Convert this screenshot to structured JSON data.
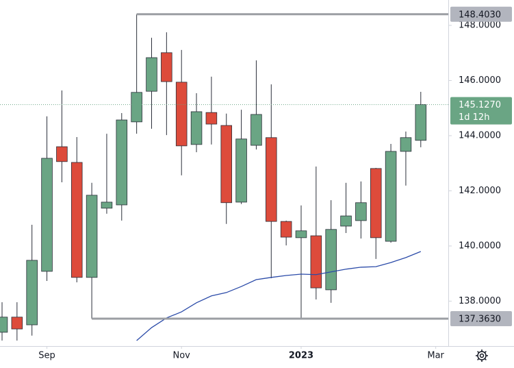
{
  "chart_data": {
    "type": "candlestick",
    "x": [
      0,
      1,
      2,
      3,
      4,
      5,
      6,
      7,
      8,
      9,
      10,
      11,
      12,
      13,
      14,
      15,
      16,
      17,
      18,
      19,
      20,
      21,
      22,
      23,
      24,
      25,
      26,
      27,
      28
    ],
    "open": [
      136.87,
      137.42,
      137.14,
      139.08,
      143.6,
      143.03,
      138.86,
      141.37,
      141.49,
      144.5,
      145.61,
      147.01,
      145.94,
      143.68,
      144.84,
      144.37,
      141.59,
      143.65,
      143.93,
      140.89,
      140.3,
      140.37,
      138.41,
      140.72,
      140.92,
      142.81,
      140.17,
      143.43,
      143.83
    ],
    "high": [
      137.96,
      137.96,
      140.77,
      144.7,
      145.64,
      143.95,
      142.29,
      144.07,
      144.82,
      148.403,
      147.55,
      147.75,
      147.11,
      145.54,
      146.14,
      144.8,
      144.94,
      146.73,
      145.86,
      140.92,
      141.47,
      142.88,
      141.66,
      142.29,
      142.34,
      142.83,
      143.7,
      144.15,
      145.59
    ],
    "low": [
      136.57,
      136.57,
      136.75,
      138.73,
      142.31,
      138.68,
      137.363,
      141.17,
      140.92,
      144.07,
      144.25,
      144.02,
      142.56,
      143.4,
      143.68,
      140.8,
      141.52,
      143.5,
      138.83,
      140.02,
      137.363,
      138.06,
      137.94,
      140.47,
      140.27,
      139.53,
      140.12,
      142.19,
      143.58
    ],
    "close": [
      137.42,
      136.99,
      139.48,
      143.18,
      143.06,
      138.86,
      141.84,
      141.59,
      144.57,
      145.57,
      146.83,
      145.96,
      143.63,
      144.87,
      144.42,
      141.57,
      143.88,
      144.77,
      140.89,
      140.32,
      140.55,
      138.48,
      140.6,
      141.09,
      141.57,
      140.3,
      143.43,
      143.93,
      145.127
    ],
    "up_color": "#6aa584",
    "down_color": "#dd4b3b",
    "wick_color": "#2a2e39",
    "ma": {
      "color": "#2a4aa8",
      "values": [
        null,
        null,
        null,
        null,
        null,
        null,
        null,
        null,
        null,
        136.57,
        137.04,
        137.39,
        137.61,
        137.94,
        138.19,
        138.31,
        138.53,
        138.78,
        138.86,
        138.93,
        138.98,
        138.96,
        139.06,
        139.16,
        139.23,
        139.25,
        139.4,
        139.58,
        139.8
      ]
    },
    "xlim": [
      -0.137,
      29.84
    ],
    "xticks": [
      {
        "value": 3,
        "label": "Sep"
      },
      {
        "value": 12,
        "label": "Nov"
      },
      {
        "value": 20,
        "label": "2023"
      },
      {
        "value": 29,
        "label": "Mar"
      }
    ],
    "ylim": [
      136.37,
      148.92
    ],
    "yticks": [
      {
        "value": 138,
        "label": "138.0000"
      },
      {
        "value": 140,
        "label": "140.0000"
      },
      {
        "value": 142,
        "label": "142.0000"
      },
      {
        "value": 144,
        "label": "144.0000"
      },
      {
        "value": 146,
        "label": "146.0000"
      },
      {
        "value": 148,
        "label": "148.0000"
      }
    ],
    "hlines": [
      {
        "value": 148.403,
        "label": "148.4030",
        "from": 9,
        "color": "#9b9ea3"
      },
      {
        "value": 137.363,
        "label": "137.3630",
        "from": 6,
        "color": "#9b9ea3"
      }
    ],
    "price_line": {
      "value": 145.127,
      "label": "145.1270",
      "countdown": "1d 12h",
      "color": "#6aa584"
    }
  }
}
